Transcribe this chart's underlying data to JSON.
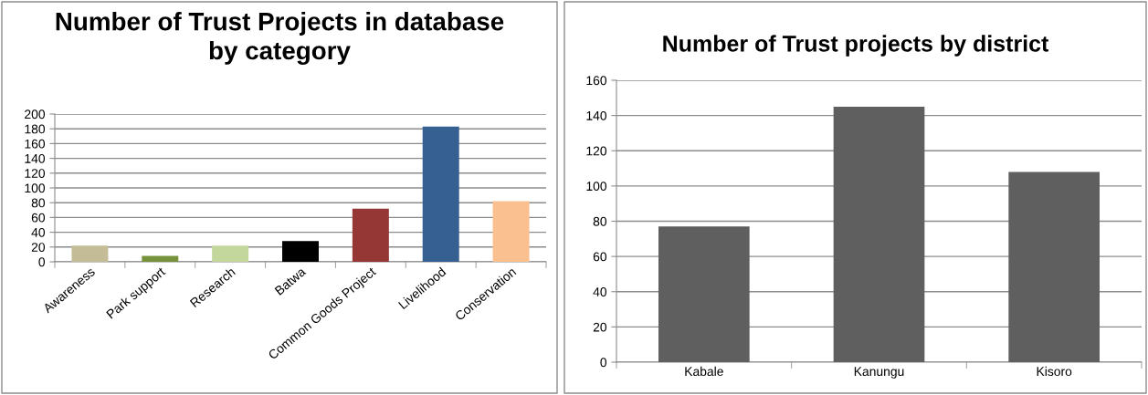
{
  "chart_data": [
    {
      "type": "bar",
      "title": "Number of Trust Projects in database\nby category",
      "categories": [
        "Awareness",
        "Park support",
        "Research",
        "Batwa",
        "Common Goods Project",
        "Livelihood",
        "Conservation"
      ],
      "values": [
        22,
        8,
        22,
        28,
        72,
        183,
        82
      ],
      "colors": [
        "#c4bc96",
        "#76923c",
        "#c3d69b",
        "#000000",
        "#953735",
        "#366092",
        "#fac090"
      ],
      "ylim": [
        0,
        200
      ],
      "yticks": [
        0,
        20,
        40,
        60,
        80,
        100,
        120,
        140,
        160,
        180,
        200
      ],
      "grid": "y"
    },
    {
      "type": "bar",
      "title": "Number of Trust projects by district",
      "categories": [
        "Kabale",
        "Kanungu",
        "Kisoro"
      ],
      "values": [
        77,
        145,
        108
      ],
      "colors": [
        "#5f5f5f",
        "#5f5f5f",
        "#5f5f5f"
      ],
      "ylim": [
        0,
        160
      ],
      "yticks": [
        0,
        20,
        40,
        60,
        80,
        100,
        120,
        140,
        160
      ],
      "grid": "y"
    }
  ]
}
